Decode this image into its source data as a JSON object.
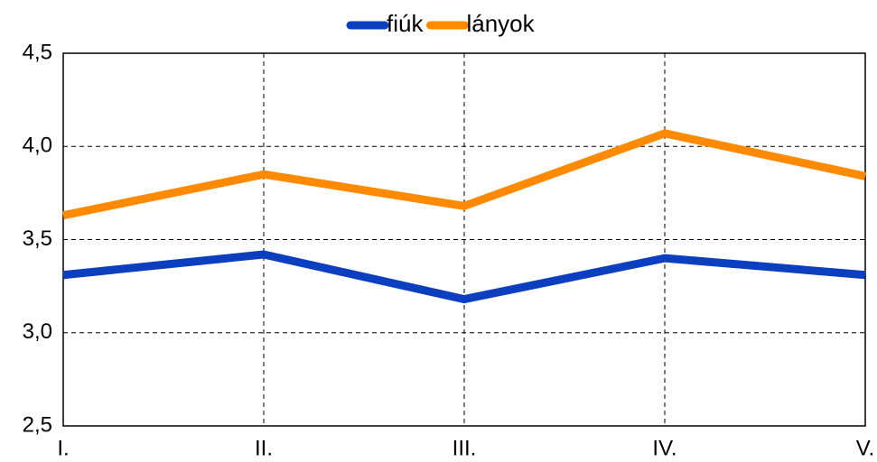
{
  "chart_data": {
    "type": "line",
    "categories": [
      "I.",
      "II.",
      "III.",
      "IV.",
      "V."
    ],
    "series": [
      {
        "name": "fiúk",
        "color": "#0b3fbf",
        "values": [
          3.31,
          3.42,
          3.18,
          3.4,
          3.31
        ]
      },
      {
        "name": "lányok",
        "color": "#ff8a00",
        "values": [
          3.63,
          3.85,
          3.68,
          4.07,
          3.84
        ]
      }
    ],
    "ylim": [
      2.5,
      4.5
    ],
    "yticks": [
      {
        "value": 2.5,
        "label": "2,5"
      },
      {
        "value": 3.0,
        "label": "3,0"
      },
      {
        "value": 3.5,
        "label": "3,5"
      },
      {
        "value": 4.0,
        "label": "4,0"
      },
      {
        "value": 4.5,
        "label": "4,5"
      }
    ],
    "grid": true,
    "legend": "top"
  }
}
